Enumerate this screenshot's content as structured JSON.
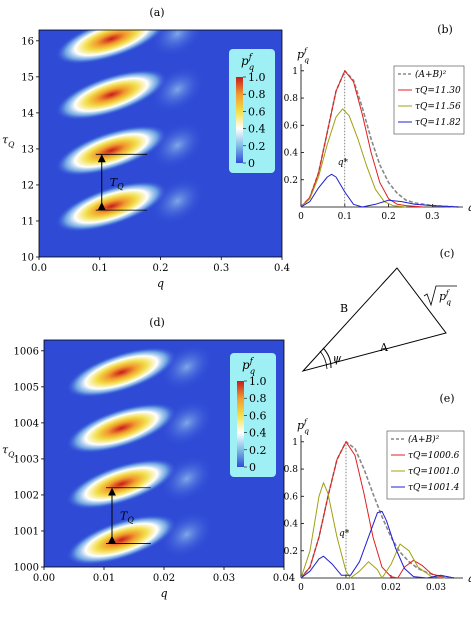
{
  "chart_data": [
    {
      "panel": "(a)",
      "type": "heatmap",
      "xlabel": "q",
      "ylabel": "τQ",
      "xlim": [
        0.0,
        0.4
      ],
      "ylim": [
        10,
        16.3
      ],
      "xticks": [
        "0.0",
        "0.1",
        "0.2",
        "0.3",
        "0.4"
      ],
      "yticks": [
        "10",
        "11",
        "12",
        "13",
        "14",
        "15",
        "16"
      ],
      "colorbar": {
        "title": "p_q^f",
        "ticks": [
          "1.0",
          "0.8",
          "0.6",
          "0.4",
          "0.2",
          "0"
        ],
        "colors": [
          "#2f4bd6",
          "#7fbce6",
          "#ffffff",
          "#f2df4a",
          "#f29a2e",
          "#c71b1b"
        ]
      },
      "peaks": [
        {
          "q": 0.1,
          "tau": 11.3
        },
        {
          "q": 0.1,
          "tau": 12.85
        },
        {
          "q": 0.1,
          "tau": 14.4
        },
        {
          "q": 0.1,
          "tau": 15.95
        }
      ],
      "annotation": {
        "text": "T_Q",
        "from_tau": 11.3,
        "to_tau": 12.85
      }
    },
    {
      "panel": "(b)",
      "type": "line",
      "xlabel": "q",
      "ylabel": "p_q^f",
      "xlim": [
        0,
        0.37
      ],
      "ylim": [
        0,
        1.05
      ],
      "xticks": [
        "0",
        "0.1",
        "0.2",
        "0.3"
      ],
      "yticks": [
        "0.2",
        "0.4",
        "0.6",
        "0.8",
        "1"
      ],
      "marker": {
        "label": "q*",
        "x": 0.1
      },
      "series": [
        {
          "name": "(A+B)²",
          "color": "#888888",
          "dashed": true,
          "points": [
            [
              0,
              0
            ],
            [
              0.02,
              0.07
            ],
            [
              0.04,
              0.25
            ],
            [
              0.06,
              0.55
            ],
            [
              0.08,
              0.85
            ],
            [
              0.1,
              1.0
            ],
            [
              0.12,
              0.93
            ],
            [
              0.14,
              0.73
            ],
            [
              0.16,
              0.5
            ],
            [
              0.18,
              0.31
            ],
            [
              0.2,
              0.18
            ],
            [
              0.22,
              0.1
            ],
            [
              0.24,
              0.05
            ],
            [
              0.26,
              0.03
            ],
            [
              0.3,
              0.01
            ],
            [
              0.36,
              0
            ]
          ]
        },
        {
          "name": "τQ=11.30",
          "color": "#e02020",
          "dashed": false,
          "points": [
            [
              0,
              0
            ],
            [
              0.02,
              0.07
            ],
            [
              0.04,
              0.25
            ],
            [
              0.06,
              0.55
            ],
            [
              0.08,
              0.85
            ],
            [
              0.1,
              1.0
            ],
            [
              0.12,
              0.92
            ],
            [
              0.14,
              0.68
            ],
            [
              0.16,
              0.4
            ],
            [
              0.18,
              0.18
            ],
            [
              0.2,
              0.06
            ],
            [
              0.22,
              0.02
            ],
            [
              0.24,
              0.01
            ],
            [
              0.28,
              0
            ]
          ]
        },
        {
          "name": "τQ=11.56",
          "color": "#a0a010",
          "dashed": false,
          "points": [
            [
              0,
              0
            ],
            [
              0.02,
              0.06
            ],
            [
              0.04,
              0.22
            ],
            [
              0.06,
              0.46
            ],
            [
              0.08,
              0.66
            ],
            [
              0.095,
              0.72
            ],
            [
              0.11,
              0.67
            ],
            [
              0.13,
              0.5
            ],
            [
              0.15,
              0.3
            ],
            [
              0.17,
              0.13
            ],
            [
              0.19,
              0.04
            ],
            [
              0.21,
              0.01
            ],
            [
              0.24,
              0
            ]
          ]
        },
        {
          "name": "τQ=11.82",
          "color": "#2020d0",
          "dashed": false,
          "points": [
            [
              0,
              0
            ],
            [
              0.02,
              0.04
            ],
            [
              0.04,
              0.14
            ],
            [
              0.06,
              0.22
            ],
            [
              0.07,
              0.24
            ],
            [
              0.08,
              0.22
            ],
            [
              0.1,
              0.11
            ],
            [
              0.12,
              0.02
            ],
            [
              0.14,
              0.0
            ],
            [
              0.17,
              0.02
            ],
            [
              0.2,
              0.05
            ],
            [
              0.23,
              0.04
            ],
            [
              0.26,
              0.02
            ],
            [
              0.3,
              0.01
            ],
            [
              0.36,
              0
            ]
          ]
        }
      ]
    },
    {
      "panel": "(d)",
      "type": "heatmap",
      "xlabel": "q",
      "ylabel": "τQ",
      "xlim": [
        0.0,
        0.04
      ],
      "ylim": [
        1000,
        1006.3
      ],
      "xticks": [
        "0.00",
        "0.01",
        "0.02",
        "0.03",
        "0.04"
      ],
      "yticks": [
        "1000",
        "1001",
        "1002",
        "1003",
        "1004",
        "1005",
        "1006"
      ],
      "colorbar": {
        "title": "p_q^f",
        "ticks": [
          "1.0",
          "0.8",
          "0.6",
          "0.4",
          "0.2",
          "0"
        ],
        "colors": [
          "#2f4bd6",
          "#7fbce6",
          "#ffffff",
          "#f2df4a",
          "#f29a2e",
          "#c71b1b"
        ]
      },
      "peaks": [
        {
          "q": 0.011,
          "tau": 1000.65
        },
        {
          "q": 0.011,
          "tau": 1002.2
        },
        {
          "q": 0.011,
          "tau": 1003.75
        },
        {
          "q": 0.011,
          "tau": 1005.3
        }
      ],
      "annotation": {
        "text": "T_Q",
        "from_tau": 1000.65,
        "to_tau": 1002.2
      }
    },
    {
      "panel": "(e)",
      "type": "line",
      "xlabel": "q",
      "ylabel": "p_q^f",
      "xlim": [
        0,
        0.036
      ],
      "ylim": [
        0,
        1.05
      ],
      "xticks": [
        "0",
        "0.01",
        "0.02",
        "0.03"
      ],
      "yticks": [
        "0.2",
        "0.4",
        "0.6",
        "0.8",
        "1"
      ],
      "marker": {
        "label": "q*",
        "x": 0.01
      },
      "series": [
        {
          "name": "(A+B)²",
          "color": "#888888",
          "dashed": true,
          "points": [
            [
              0,
              0
            ],
            [
              0.002,
              0.08
            ],
            [
              0.004,
              0.3
            ],
            [
              0.006,
              0.6
            ],
            [
              0.008,
              0.87
            ],
            [
              0.01,
              1.0
            ],
            [
              0.012,
              0.95
            ],
            [
              0.014,
              0.8
            ],
            [
              0.016,
              0.62
            ],
            [
              0.018,
              0.45
            ],
            [
              0.02,
              0.3
            ],
            [
              0.022,
              0.19
            ],
            [
              0.024,
              0.12
            ],
            [
              0.026,
              0.07
            ],
            [
              0.028,
              0.04
            ],
            [
              0.03,
              0.02
            ],
            [
              0.034,
              0
            ]
          ]
        },
        {
          "name": "τQ=1000.6",
          "color": "#e02020",
          "dashed": false,
          "points": [
            [
              0,
              0
            ],
            [
              0.002,
              0.08
            ],
            [
              0.004,
              0.3
            ],
            [
              0.006,
              0.6
            ],
            [
              0.008,
              0.87
            ],
            [
              0.01,
              1.0
            ],
            [
              0.012,
              0.9
            ],
            [
              0.014,
              0.62
            ],
            [
              0.016,
              0.3
            ],
            [
              0.018,
              0.08
            ],
            [
              0.02,
              0.01
            ],
            [
              0.0215,
              0.0
            ],
            [
              0.023,
              0.08
            ],
            [
              0.025,
              0.13
            ],
            [
              0.027,
              0.09
            ],
            [
              0.029,
              0.03
            ],
            [
              0.032,
              0
            ]
          ]
        },
        {
          "name": "τQ=1001.0",
          "color": "#a0a010",
          "dashed": false,
          "points": [
            [
              0,
              0
            ],
            [
              0.002,
              0.2
            ],
            [
              0.004,
              0.6
            ],
            [
              0.005,
              0.7
            ],
            [
              0.006,
              0.62
            ],
            [
              0.008,
              0.3
            ],
            [
              0.01,
              0.05
            ],
            [
              0.011,
              0.0
            ],
            [
              0.013,
              0.05
            ],
            [
              0.015,
              0.12
            ],
            [
              0.017,
              0.06
            ],
            [
              0.018,
              0.0
            ],
            [
              0.02,
              0.1
            ],
            [
              0.022,
              0.25
            ],
            [
              0.024,
              0.2
            ],
            [
              0.026,
              0.08
            ],
            [
              0.029,
              0.01
            ],
            [
              0.032,
              0
            ]
          ]
        },
        {
          "name": "τQ=1001.4",
          "color": "#2020d0",
          "dashed": false,
          "points": [
            [
              0,
              0
            ],
            [
              0.002,
              0.05
            ],
            [
              0.004,
              0.14
            ],
            [
              0.005,
              0.16
            ],
            [
              0.007,
              0.1
            ],
            [
              0.009,
              0.02
            ],
            [
              0.011,
              0.02
            ],
            [
              0.013,
              0.12
            ],
            [
              0.015,
              0.3
            ],
            [
              0.017,
              0.48
            ],
            [
              0.018,
              0.49
            ],
            [
              0.019,
              0.42
            ],
            [
              0.021,
              0.22
            ],
            [
              0.023,
              0.07
            ],
            [
              0.025,
              0.01
            ],
            [
              0.028,
              0.0
            ],
            [
              0.031,
              0.02
            ],
            [
              0.034,
              0
            ]
          ]
        }
      ]
    },
    {
      "panel": "(c)",
      "type": "diagram",
      "labels": {
        "side_b": "B",
        "side_a": "A",
        "side_c": "√p_q^f",
        "angle": "ψ"
      }
    }
  ],
  "panel_labels": {
    "a": "(a)",
    "b": "(b)",
    "c": "(c)",
    "d": "(d)",
    "e": "(e)"
  },
  "colors": {
    "axis": "#000000",
    "heatmap_bg": "#2f4bd6",
    "colorbar_frame": "#9ff0f5"
  }
}
